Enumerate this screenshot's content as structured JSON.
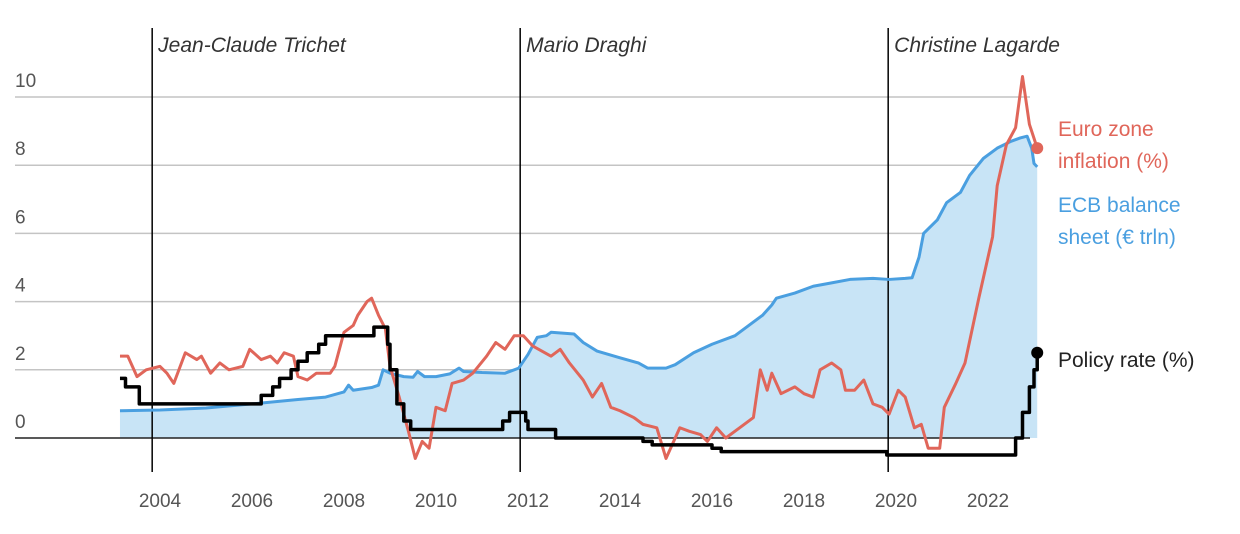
{
  "chart_data": {
    "type": "line",
    "title": "",
    "xlabel": "",
    "ylabel": "",
    "xlim": [
      2002.6,
      2023.4
    ],
    "ylim": [
      -1,
      11
    ],
    "grid": true,
    "x_ticks": [
      "2004",
      "2006",
      "2008",
      "2010",
      "2012",
      "2014",
      "2016",
      "2018",
      "2020",
      "2022"
    ],
    "y_ticks": [
      "0",
      "2",
      "4",
      "6",
      "8",
      "10"
    ],
    "legend": "right, direct labels at line ends",
    "annotations": [
      {
        "label": "Jean-Claude Trichet",
        "x": 2003.83
      },
      {
        "label": "Mario Draghi",
        "x": 2011.83
      },
      {
        "label": "Christine Lagarde",
        "x": 2019.83
      }
    ],
    "series": [
      {
        "name": "ECB balance sheet (€ trln)",
        "name_lines": [
          "ECB balance",
          "sheet (€ trln)"
        ],
        "color": "#4a9fe0",
        "fill": "#c8e4f6",
        "style": "area",
        "points": [
          [
            2003.13,
            0.8
          ],
          [
            2004,
            0.82
          ],
          [
            2005,
            0.88
          ],
          [
            2006,
            1.0
          ],
          [
            2007,
            1.13
          ],
          [
            2007.6,
            1.2
          ],
          [
            2008,
            1.35
          ],
          [
            2008.1,
            1.55
          ],
          [
            2008.2,
            1.4
          ],
          [
            2008.6,
            1.48
          ],
          [
            2008.75,
            1.55
          ],
          [
            2008.85,
            2.0
          ],
          [
            2009,
            1.9
          ],
          [
            2009.3,
            1.8
          ],
          [
            2009.5,
            1.78
          ],
          [
            2009.6,
            1.95
          ],
          [
            2009.75,
            1.8
          ],
          [
            2010,
            1.8
          ],
          [
            2010.3,
            1.88
          ],
          [
            2010.5,
            2.05
          ],
          [
            2010.6,
            1.95
          ],
          [
            2011,
            1.92
          ],
          [
            2011.5,
            1.9
          ],
          [
            2011.8,
            2.05
          ],
          [
            2012.0,
            2.45
          ],
          [
            2012.2,
            2.95
          ],
          [
            2012.4,
            3.0
          ],
          [
            2012.5,
            3.1
          ],
          [
            2013,
            3.05
          ],
          [
            2013.2,
            2.8
          ],
          [
            2013.5,
            2.55
          ],
          [
            2014,
            2.35
          ],
          [
            2014.4,
            2.2
          ],
          [
            2014.6,
            2.05
          ],
          [
            2015,
            2.05
          ],
          [
            2015.2,
            2.15
          ],
          [
            2015.6,
            2.5
          ],
          [
            2016,
            2.75
          ],
          [
            2016.5,
            3.0
          ],
          [
            2016.8,
            3.3
          ],
          [
            2017.1,
            3.6
          ],
          [
            2017.3,
            3.9
          ],
          [
            2017.4,
            4.1
          ],
          [
            2017.8,
            4.25
          ],
          [
            2018.2,
            4.45
          ],
          [
            2018.6,
            4.55
          ],
          [
            2019,
            4.65
          ],
          [
            2019.5,
            4.68
          ],
          [
            2019.85,
            4.65
          ],
          [
            2020.2,
            4.68
          ],
          [
            2020.35,
            4.7
          ],
          [
            2020.5,
            5.3
          ],
          [
            2020.6,
            6.0
          ],
          [
            2020.9,
            6.4
          ],
          [
            2021.1,
            6.9
          ],
          [
            2021.4,
            7.2
          ],
          [
            2021.6,
            7.7
          ],
          [
            2021.9,
            8.2
          ],
          [
            2022.2,
            8.5
          ],
          [
            2022.5,
            8.7
          ],
          [
            2022.7,
            8.8
          ],
          [
            2022.85,
            8.85
          ],
          [
            2022.95,
            8.5
          ],
          [
            2023.0,
            8.05
          ],
          [
            2023.07,
            7.95
          ]
        ]
      },
      {
        "name": "Euro zone inflation (%)",
        "name_lines": [
          "Euro zone",
          "inflation (%)"
        ],
        "color": "#e0665a",
        "style": "line",
        "points": [
          [
            2003.13,
            2.4
          ],
          [
            2003.3,
            2.4
          ],
          [
            2003.5,
            1.8
          ],
          [
            2003.7,
            2.0
          ],
          [
            2004,
            2.1
          ],
          [
            2004.15,
            1.9
          ],
          [
            2004.3,
            1.6
          ],
          [
            2004.55,
            2.5
          ],
          [
            2004.8,
            2.3
          ],
          [
            2004.9,
            2.4
          ],
          [
            2005.1,
            1.9
          ],
          [
            2005.3,
            2.2
          ],
          [
            2005.5,
            2.0
          ],
          [
            2005.8,
            2.1
          ],
          [
            2005.95,
            2.6
          ],
          [
            2006.2,
            2.3
          ],
          [
            2006.4,
            2.4
          ],
          [
            2006.55,
            2.2
          ],
          [
            2006.7,
            2.5
          ],
          [
            2006.9,
            2.4
          ],
          [
            2007.0,
            1.8
          ],
          [
            2007.2,
            1.7
          ],
          [
            2007.4,
            1.9
          ],
          [
            2007.7,
            1.9
          ],
          [
            2007.8,
            2.1
          ],
          [
            2008.0,
            3.1
          ],
          [
            2008.2,
            3.3
          ],
          [
            2008.3,
            3.6
          ],
          [
            2008.5,
            4.0
          ],
          [
            2008.6,
            4.1
          ],
          [
            2008.75,
            3.6
          ],
          [
            2008.9,
            3.2
          ],
          [
            2009.0,
            2.1
          ],
          [
            2009.2,
            1.2
          ],
          [
            2009.4,
            0.2
          ],
          [
            2009.55,
            -0.6
          ],
          [
            2009.7,
            -0.1
          ],
          [
            2009.85,
            -0.3
          ],
          [
            2010.0,
            0.9
          ],
          [
            2010.2,
            0.8
          ],
          [
            2010.35,
            1.6
          ],
          [
            2010.6,
            1.7
          ],
          [
            2010.8,
            1.9
          ],
          [
            2011.1,
            2.4
          ],
          [
            2011.3,
            2.8
          ],
          [
            2011.5,
            2.6
          ],
          [
            2011.7,
            3.0
          ],
          [
            2011.9,
            3.0
          ],
          [
            2012.1,
            2.7
          ],
          [
            2012.5,
            2.4
          ],
          [
            2012.7,
            2.6
          ],
          [
            2012.9,
            2.2
          ],
          [
            2013.2,
            1.7
          ],
          [
            2013.4,
            1.2
          ],
          [
            2013.6,
            1.6
          ],
          [
            2013.8,
            0.9
          ],
          [
            2014.0,
            0.8
          ],
          [
            2014.3,
            0.6
          ],
          [
            2014.5,
            0.4
          ],
          [
            2014.8,
            0.3
          ],
          [
            2015.0,
            -0.6
          ],
          [
            2015.3,
            0.3
          ],
          [
            2015.5,
            0.2
          ],
          [
            2015.75,
            0.1
          ],
          [
            2015.9,
            -0.1
          ],
          [
            2016.1,
            0.3
          ],
          [
            2016.3,
            0.0
          ],
          [
            2016.6,
            0.3
          ],
          [
            2016.9,
            0.6
          ],
          [
            2017.05,
            2.0
          ],
          [
            2017.2,
            1.4
          ],
          [
            2017.3,
            1.9
          ],
          [
            2017.5,
            1.3
          ],
          [
            2017.8,
            1.5
          ],
          [
            2018.0,
            1.3
          ],
          [
            2018.2,
            1.2
          ],
          [
            2018.35,
            2.0
          ],
          [
            2018.6,
            2.2
          ],
          [
            2018.8,
            2.0
          ],
          [
            2018.9,
            1.4
          ],
          [
            2019.1,
            1.4
          ],
          [
            2019.3,
            1.7
          ],
          [
            2019.5,
            1.0
          ],
          [
            2019.7,
            0.9
          ],
          [
            2019.85,
            0.7
          ],
          [
            2020.05,
            1.4
          ],
          [
            2020.2,
            1.2
          ],
          [
            2020.4,
            0.3
          ],
          [
            2020.55,
            0.4
          ],
          [
            2020.7,
            -0.3
          ],
          [
            2020.95,
            -0.3
          ],
          [
            2021.05,
            0.9
          ],
          [
            2021.3,
            1.6
          ],
          [
            2021.5,
            2.2
          ],
          [
            2021.8,
            4.1
          ],
          [
            2021.95,
            5.0
          ],
          [
            2022.1,
            5.9
          ],
          [
            2022.2,
            7.4
          ],
          [
            2022.4,
            8.6
          ],
          [
            2022.6,
            9.1
          ],
          [
            2022.75,
            10.6
          ],
          [
            2022.9,
            9.2
          ],
          [
            2023.07,
            8.5
          ]
        ]
      },
      {
        "name": "Policy rate (%)",
        "name_lines": [
          "Policy rate (%)"
        ],
        "color": "#000000",
        "style": "step",
        "points": [
          [
            2003.13,
            1.75
          ],
          [
            2003.25,
            1.5
          ],
          [
            2003.45,
            1.5
          ],
          [
            2003.55,
            1.0
          ],
          [
            2005.95,
            1.0
          ],
          [
            2006.2,
            1.25
          ],
          [
            2006.45,
            1.5
          ],
          [
            2006.6,
            1.75
          ],
          [
            2006.85,
            2.0
          ],
          [
            2007.0,
            2.25
          ],
          [
            2007.2,
            2.5
          ],
          [
            2007.45,
            2.75
          ],
          [
            2007.6,
            3.0
          ],
          [
            2008.55,
            3.0
          ],
          [
            2008.65,
            3.25
          ],
          [
            2008.85,
            3.25
          ],
          [
            2008.95,
            2.75
          ],
          [
            2009.0,
            2.0
          ],
          [
            2009.15,
            1.0
          ],
          [
            2009.3,
            0.5
          ],
          [
            2009.45,
            0.25
          ],
          [
            2011.3,
            0.25
          ],
          [
            2011.45,
            0.5
          ],
          [
            2011.6,
            0.75
          ],
          [
            2011.85,
            0.75
          ],
          [
            2011.95,
            0.5
          ],
          [
            2012.0,
            0.25
          ],
          [
            2012.5,
            0.25
          ],
          [
            2012.6,
            0.0
          ],
          [
            2014.4,
            0.0
          ],
          [
            2014.5,
            -0.1
          ],
          [
            2014.7,
            -0.2
          ],
          [
            2015.9,
            -0.2
          ],
          [
            2016.0,
            -0.3
          ],
          [
            2016.2,
            -0.4
          ],
          [
            2019.7,
            -0.4
          ],
          [
            2019.8,
            -0.5
          ],
          [
            2022.5,
            -0.5
          ],
          [
            2022.6,
            0.0
          ],
          [
            2022.75,
            0.75
          ],
          [
            2022.9,
            1.5
          ],
          [
            2023.0,
            2.0
          ],
          [
            2023.07,
            2.5
          ]
        ]
      }
    ]
  }
}
